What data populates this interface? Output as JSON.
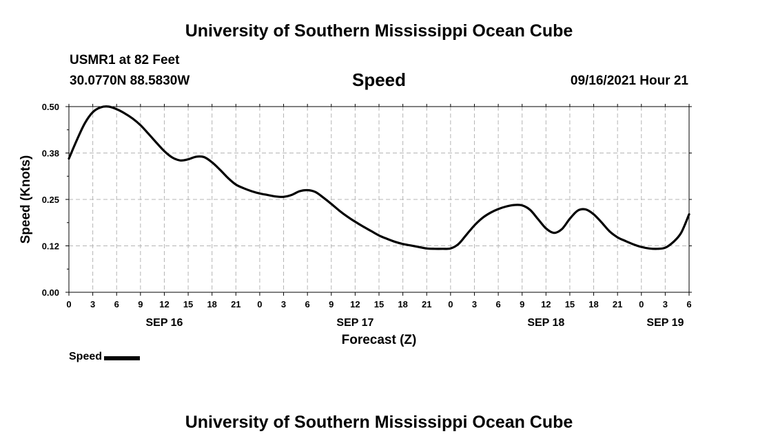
{
  "header": {
    "title": "University of Southern Mississippi Ocean Cube",
    "station": "USMR1 at 82 Feet",
    "coordinates": "30.0770N  88.5830W",
    "parameter": "Speed",
    "datetime": "09/16/2021 Hour 21"
  },
  "footer": {
    "title": "University of Southern Mississippi Ocean Cube"
  },
  "legend": {
    "label": "Speed"
  },
  "colors": {
    "line": "#000000",
    "grid": "#b4b4b4",
    "background": "#ffffff"
  },
  "chart_data": {
    "type": "line",
    "title": "Speed",
    "xlabel": "Forecast (Z)",
    "ylabel": "Speed (Knots)",
    "xlim": [
      0,
      78
    ],
    "ylim": [
      0.0,
      0.5
    ],
    "grid": true,
    "legend_position": "bottom-left",
    "y_ticks": [
      {
        "value": 0.0,
        "label": "0.00"
      },
      {
        "value": 0.125,
        "label": "0.12"
      },
      {
        "value": 0.25,
        "label": "0.25"
      },
      {
        "value": 0.375,
        "label": "0.38"
      },
      {
        "value": 0.5,
        "label": "0.50"
      }
    ],
    "x_ticks": [
      {
        "value": 0,
        "label": "0"
      },
      {
        "value": 3,
        "label": "3"
      },
      {
        "value": 6,
        "label": "6"
      },
      {
        "value": 9,
        "label": "9"
      },
      {
        "value": 12,
        "label": "12"
      },
      {
        "value": 15,
        "label": "15"
      },
      {
        "value": 18,
        "label": "18"
      },
      {
        "value": 21,
        "label": "21"
      },
      {
        "value": 24,
        "label": "0"
      },
      {
        "value": 27,
        "label": "3"
      },
      {
        "value": 30,
        "label": "6"
      },
      {
        "value": 33,
        "label": "9"
      },
      {
        "value": 36,
        "label": "12"
      },
      {
        "value": 39,
        "label": "15"
      },
      {
        "value": 42,
        "label": "18"
      },
      {
        "value": 45,
        "label": "21"
      },
      {
        "value": 48,
        "label": "0"
      },
      {
        "value": 51,
        "label": "3"
      },
      {
        "value": 54,
        "label": "6"
      },
      {
        "value": 57,
        "label": "9"
      },
      {
        "value": 60,
        "label": "12"
      },
      {
        "value": 63,
        "label": "15"
      },
      {
        "value": 66,
        "label": "18"
      },
      {
        "value": 69,
        "label": "21"
      },
      {
        "value": 72,
        "label": "0"
      },
      {
        "value": 75,
        "label": "3"
      },
      {
        "value": 78,
        "label": "6"
      }
    ],
    "date_labels": [
      {
        "value": 12,
        "label": "SEP 16"
      },
      {
        "value": 36,
        "label": "SEP 17"
      },
      {
        "value": 60,
        "label": "SEP 18"
      },
      {
        "value": 75,
        "label": "SEP 19"
      }
    ],
    "series": [
      {
        "name": "Speed",
        "x": [
          0,
          1,
          2,
          3,
          4,
          5,
          6,
          7,
          8,
          9,
          10,
          11,
          12,
          13,
          14,
          15,
          16,
          17,
          18,
          19,
          20,
          21,
          22,
          23,
          24,
          25,
          26,
          27,
          28,
          29,
          30,
          31,
          32,
          33,
          34,
          35,
          36,
          37,
          38,
          39,
          40,
          41,
          42,
          43,
          44,
          45,
          46,
          47,
          48,
          49,
          50,
          51,
          52,
          53,
          54,
          55,
          56,
          57,
          58,
          59,
          60,
          61,
          62,
          63,
          64,
          65,
          66,
          67,
          68,
          69,
          70,
          71,
          72,
          73,
          74,
          75,
          76,
          77,
          78
        ],
        "values": [
          0.36,
          0.41,
          0.455,
          0.485,
          0.498,
          0.5,
          0.493,
          0.482,
          0.468,
          0.45,
          0.427,
          0.403,
          0.38,
          0.363,
          0.355,
          0.358,
          0.365,
          0.364,
          0.35,
          0.33,
          0.308,
          0.29,
          0.28,
          0.272,
          0.266,
          0.262,
          0.258,
          0.257,
          0.262,
          0.272,
          0.275,
          0.27,
          0.255,
          0.238,
          0.22,
          0.204,
          0.19,
          0.177,
          0.165,
          0.153,
          0.144,
          0.136,
          0.13,
          0.126,
          0.122,
          0.118,
          0.117,
          0.117,
          0.118,
          0.13,
          0.155,
          0.18,
          0.2,
          0.214,
          0.224,
          0.231,
          0.235,
          0.234,
          0.222,
          0.197,
          0.172,
          0.16,
          0.17,
          0.198,
          0.22,
          0.223,
          0.21,
          0.188,
          0.164,
          0.148,
          0.138,
          0.129,
          0.122,
          0.118,
          0.117,
          0.12,
          0.135,
          0.16,
          0.21
        ]
      }
    ]
  }
}
